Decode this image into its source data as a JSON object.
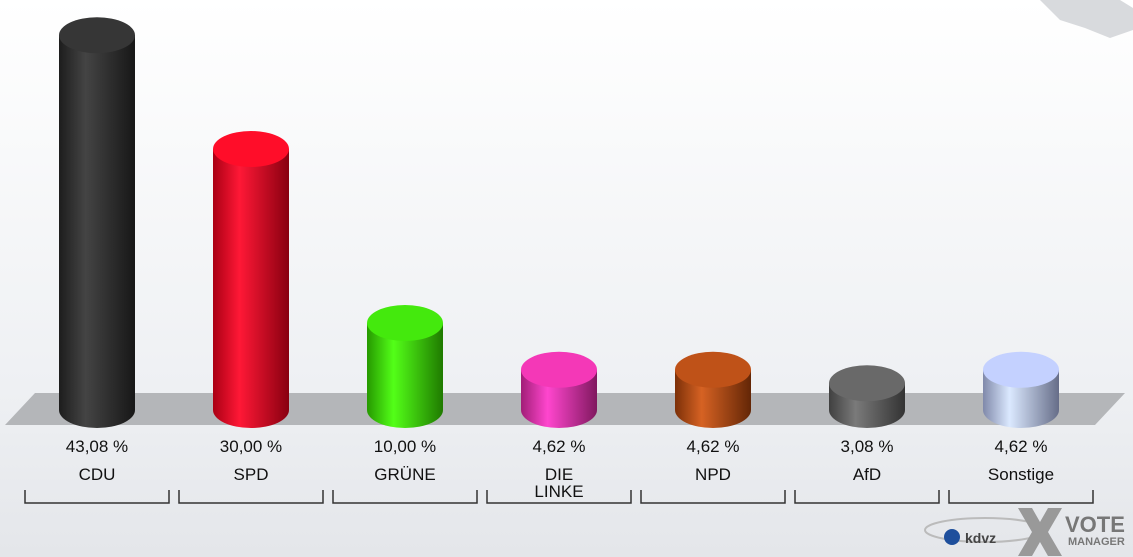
{
  "chart_data": {
    "type": "bar",
    "categories": [
      "CDU",
      "SPD",
      "GRÜNE",
      "DIE LINKE",
      "NPD",
      "AfD",
      "Sonstige"
    ],
    "values": [
      43.08,
      30.0,
      10.0,
      4.62,
      4.62,
      3.08,
      4.62
    ],
    "value_labels": [
      "43,08 %",
      "30,00 %",
      "10,00 %",
      "4,62 %",
      "4,62 %",
      "3,08 %",
      "4,62 %"
    ],
    "colors": [
      "#262626",
      "#e2001a",
      "#33cc00",
      "#d6289e",
      "#a5400a",
      "#555555",
      "#aab6e2"
    ]
  },
  "logo": {
    "kdvz": "kdvz",
    "vote": "VOTE",
    "manager": "MANAGER"
  }
}
